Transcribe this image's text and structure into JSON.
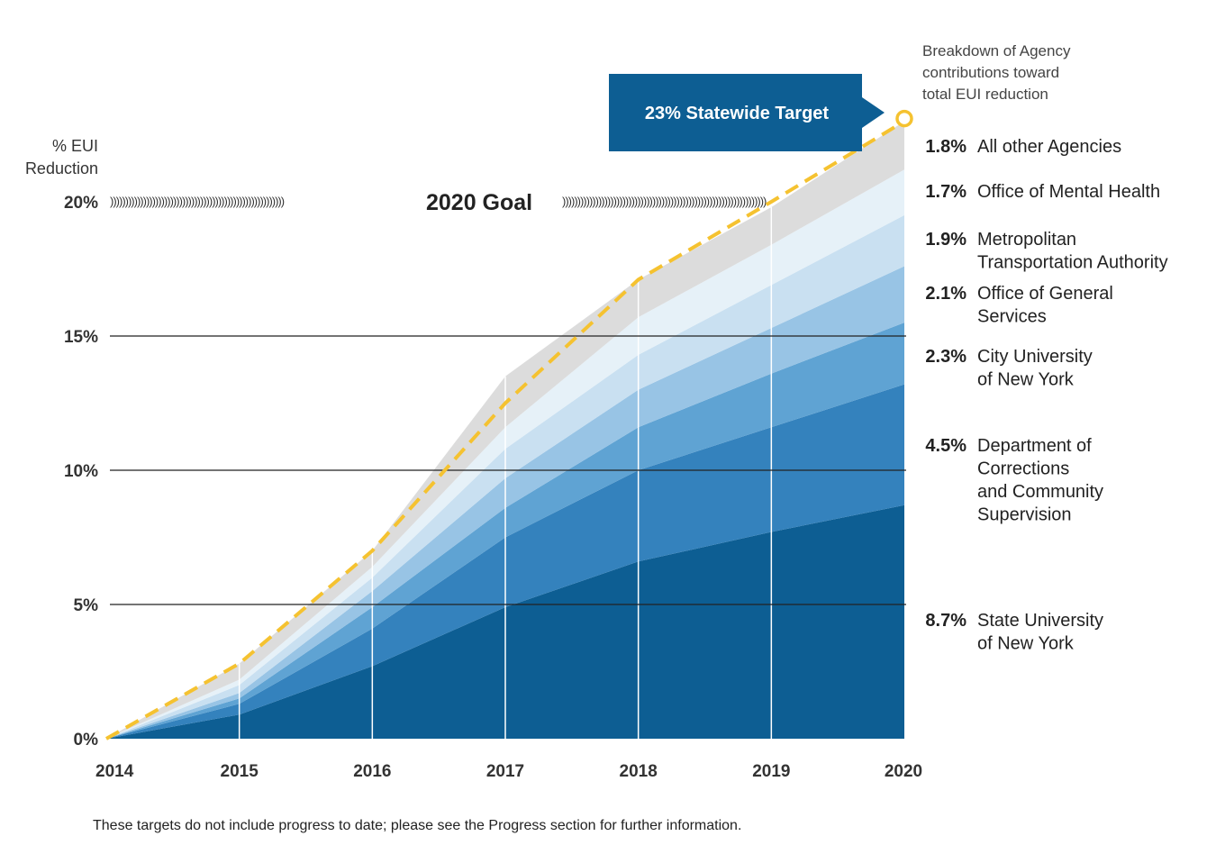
{
  "chart_data": {
    "type": "area",
    "stacked": true,
    "x": [
      2014,
      2015,
      2016,
      2017,
      2018,
      2019,
      2020
    ],
    "x_tick_labels": [
      "2014",
      "2015",
      "2016",
      "2017",
      "2018",
      "2019",
      "2020"
    ],
    "y_tick_labels": [
      "0%",
      "5%",
      "10%",
      "15%",
      "20%"
    ],
    "y_ticks": [
      0,
      5,
      10,
      15,
      20
    ],
    "ylim": [
      0,
      23
    ],
    "ylabel": [
      "% EUI",
      "Reduction"
    ],
    "grid": "horizontal at 5, 10, 15",
    "series": [
      {
        "pct": "8.7%",
        "name_lines": [
          "State University",
          "of New York"
        ],
        "color": "#0d5e93",
        "values": [
          0,
          0.9,
          2.7,
          4.9,
          6.6,
          7.7,
          8.7
        ]
      },
      {
        "pct": "4.5%",
        "name_lines": [
          "Department of",
          "Corrections",
          "and Community",
          "Supervision"
        ],
        "color": "#3482bd",
        "values": [
          0,
          0.4,
          1.4,
          2.6,
          3.4,
          3.9,
          4.5
        ]
      },
      {
        "pct": "2.3%",
        "name_lines": [
          "City University",
          "of New York"
        ],
        "color": "#5fa3d3",
        "values": [
          0,
          0.2,
          0.8,
          1.1,
          1.6,
          2.0,
          2.3
        ]
      },
      {
        "pct": "2.1%",
        "name_lines": [
          "Office of General",
          "Services"
        ],
        "color": "#98c4e5",
        "values": [
          0,
          0.2,
          0.6,
          1.1,
          1.4,
          1.7,
          2.1
        ]
      },
      {
        "pct": "1.9%",
        "name_lines": [
          "Metropolitan",
          "Transportation Authority"
        ],
        "color": "#c9e0f1",
        "values": [
          0,
          0.3,
          0.5,
          1.1,
          1.3,
          1.6,
          1.9
        ]
      },
      {
        "pct": "1.7%",
        "name_lines": [
          "Office of Mental Health"
        ],
        "color": "#e6f1f8",
        "values": [
          0,
          0.2,
          0.4,
          0.8,
          1.4,
          1.5,
          1.7
        ]
      },
      {
        "pct": "1.8%",
        "name_lines": [
          "All other Agencies"
        ],
        "color": "#dcdcdc",
        "values": [
          0,
          0.6,
          0.6,
          1.9,
          1.4,
          1.4,
          1.8
        ]
      }
    ],
    "target_line": {
      "label": "23% Statewide Target",
      "color": "#f5c230",
      "values": [
        0,
        2.8,
        7.0,
        12.5,
        17.1,
        20.0,
        23.0
      ]
    },
    "goal": {
      "label": "2020 Goal",
      "value": 20,
      "value_label": "20%"
    },
    "breakdown_title": [
      "Breakdown of Agency",
      "contributions toward",
      "total EUI reduction"
    ],
    "footnote": "These targets do not include progress to date; please see the Progress section for further information.",
    "colors": {
      "target_box": "#0d5e93",
      "grid": "#222222",
      "year_lines": "#ffffff"
    }
  }
}
